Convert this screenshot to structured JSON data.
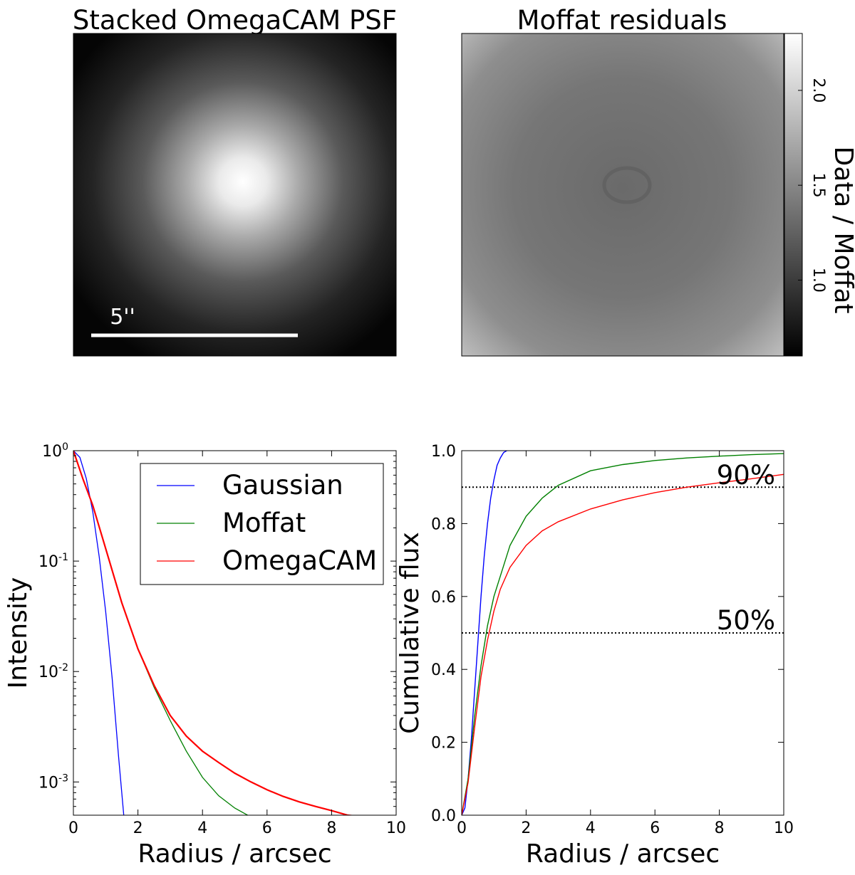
{
  "chart_data": [
    {
      "type": "heatmap",
      "panel": "psf-image",
      "title": "Stacked OmegaCAM PSF",
      "colormap": "gray",
      "scale_bar_label": "5''"
    },
    {
      "type": "heatmap",
      "panel": "residual-map",
      "title": "Moffat residuals",
      "colormap": "gray",
      "colorbar": {
        "label": "Data / Moffat",
        "range": [
          0.6,
          2.3
        ],
        "ticks": [
          1.0,
          1.5,
          2.0
        ],
        "tick_labels": [
          "1.0",
          "1.5",
          "2.0"
        ]
      }
    },
    {
      "type": "line",
      "panel": "radial-profile",
      "title": "",
      "xlabel": "Radius / arcsec",
      "ylabel": "Intensity",
      "xlim": [
        0,
        10
      ],
      "ylim": [
        0.0005,
        1
      ],
      "yscale": "log",
      "xticks": [
        0,
        2,
        4,
        6,
        8,
        10
      ],
      "yticks": [
        {
          "value": 1,
          "base": "10",
          "exp": "0"
        },
        {
          "value": 0.1,
          "base": "10",
          "exp": "-1"
        },
        {
          "value": 0.01,
          "base": "10",
          "exp": "-2"
        },
        {
          "value": 0.001,
          "base": "10",
          "exp": "-3"
        }
      ],
      "legend": "upper-right",
      "series": [
        {
          "name": "Gaussian",
          "color": "#0000ff",
          "x": [
            0,
            0.2,
            0.4,
            0.6,
            0.8,
            1.0,
            1.2,
            1.4,
            1.56
          ],
          "y": [
            1.0,
            0.87,
            0.56,
            0.28,
            0.11,
            0.035,
            0.0087,
            0.0017,
            0.0005
          ]
        },
        {
          "name": "Moffat",
          "color": "#008000",
          "x": [
            0,
            0.3,
            0.6,
            1.0,
            1.5,
            2.0,
            2.5,
            3.0,
            3.5,
            4.0,
            4.5,
            5.0,
            5.4
          ],
          "y": [
            1.0,
            0.55,
            0.32,
            0.13,
            0.042,
            0.016,
            0.0072,
            0.0036,
            0.0019,
            0.0011,
            0.00075,
            0.00058,
            0.0005
          ]
        },
        {
          "name": "OmegaCAM",
          "color": "#ff0000",
          "x": [
            0,
            0.3,
            0.6,
            1.0,
            1.5,
            2.0,
            2.5,
            3.0,
            3.5,
            4.0,
            4.5,
            5.0,
            5.5,
            6.0,
            6.5,
            7.0,
            7.5,
            8.0,
            8.5,
            8.8
          ],
          "y": [
            1.0,
            0.55,
            0.32,
            0.13,
            0.042,
            0.016,
            0.0075,
            0.004,
            0.0026,
            0.0019,
            0.0015,
            0.0012,
            0.001,
            0.00085,
            0.00074,
            0.00066,
            0.0006,
            0.00055,
            0.0005,
            0.00049
          ]
        }
      ]
    },
    {
      "type": "line",
      "panel": "cumulative-flux",
      "title": "",
      "xlabel": "Radius / arcsec",
      "ylabel": "Cumulative flux",
      "xlim": [
        0,
        10
      ],
      "ylim": [
        0,
        1.0
      ],
      "xticks": [
        0,
        2,
        4,
        6,
        8,
        10
      ],
      "yticks": [
        0.0,
        0.2,
        0.4,
        0.6,
        0.8,
        1.0
      ],
      "series": [
        {
          "color": "#0000ff",
          "x": [
            0,
            0.1,
            0.2,
            0.3,
            0.4,
            0.5,
            0.6,
            0.7,
            0.8,
            0.9,
            1.0,
            1.1,
            1.2,
            1.3,
            1.4
          ],
          "y": [
            0,
            0.02,
            0.1,
            0.21,
            0.34,
            0.47,
            0.6,
            0.71,
            0.8,
            0.87,
            0.92,
            0.96,
            0.98,
            0.995,
            1.0
          ]
        },
        {
          "color": "#008000",
          "x": [
            0,
            0.2,
            0.4,
            0.6,
            0.8,
            1.0,
            1.5,
            2.0,
            2.5,
            3.0,
            4.0,
            5.0,
            6.0,
            7.0,
            8.0,
            9.0,
            10.0
          ],
          "y": [
            0,
            0.1,
            0.27,
            0.41,
            0.52,
            0.6,
            0.74,
            0.82,
            0.87,
            0.905,
            0.945,
            0.962,
            0.973,
            0.98,
            0.985,
            0.989,
            0.992
          ]
        },
        {
          "color": "#ff0000",
          "x": [
            0,
            0.2,
            0.4,
            0.6,
            0.8,
            1.0,
            1.2,
            1.5,
            2.0,
            2.5,
            3.0,
            4.0,
            5.0,
            6.0,
            7.0,
            8.0,
            9.0,
            10.0
          ],
          "y": [
            0,
            0.09,
            0.24,
            0.38,
            0.48,
            0.56,
            0.62,
            0.68,
            0.74,
            0.78,
            0.805,
            0.84,
            0.865,
            0.885,
            0.9,
            0.912,
            0.923,
            0.935
          ]
        }
      ],
      "reference_lines": [
        {
          "y": 0.9,
          "label": "90%",
          "style": "dotted"
        },
        {
          "y": 0.5,
          "label": "50%",
          "style": "dotted"
        }
      ]
    }
  ]
}
